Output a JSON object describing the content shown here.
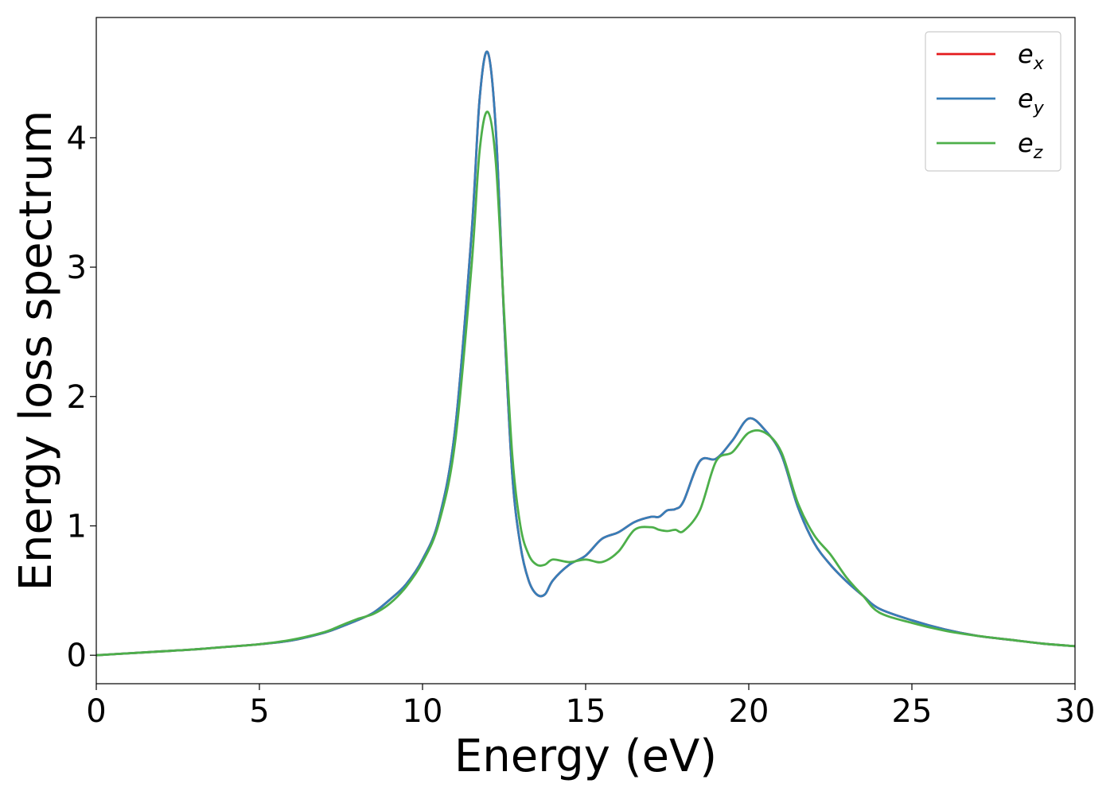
{
  "chart_data": {
    "type": "line",
    "xlabel": "Energy (eV)",
    "ylabel": "Energy loss spectrum",
    "xlim": [
      0,
      30
    ],
    "ylim": [
      -0.22,
      4.93
    ],
    "xticks": [
      "0",
      "5",
      "10",
      "15",
      "20",
      "25",
      "30"
    ],
    "yticks": [
      "0",
      "1",
      "2",
      "3",
      "4"
    ],
    "grid": false,
    "legend_position": "top-right",
    "series": [
      {
        "name": "e_x",
        "label_base": "e",
        "label_sub": "x",
        "color": "#e41a1c",
        "x": [
          0,
          1,
          2,
          3,
          4,
          5,
          6,
          7,
          7.5,
          8,
          8.5,
          9,
          9.5,
          10,
          10.5,
          11,
          11.5,
          11.75,
          12,
          12.25,
          12.5,
          12.75,
          13,
          13.25,
          13.5,
          13.75,
          14,
          14.5,
          15,
          15.5,
          16,
          16.5,
          17,
          17.25,
          17.5,
          17.75,
          18,
          18.5,
          19,
          19.5,
          20,
          20.5,
          21,
          21.5,
          22,
          22.5,
          23,
          23.5,
          24,
          25,
          26,
          27,
          28,
          29,
          30
        ],
        "y": [
          0,
          0.015,
          0.03,
          0.045,
          0.065,
          0.085,
          0.115,
          0.175,
          0.22,
          0.27,
          0.33,
          0.43,
          0.55,
          0.74,
          1.05,
          1.75,
          3.25,
          4.3,
          4.66,
          4.05,
          2.6,
          1.4,
          0.85,
          0.58,
          0.47,
          0.47,
          0.58,
          0.7,
          0.77,
          0.9,
          0.95,
          1.03,
          1.07,
          1.07,
          1.12,
          1.13,
          1.19,
          1.5,
          1.52,
          1.66,
          1.83,
          1.74,
          1.55,
          1.15,
          0.87,
          0.7,
          0.57,
          0.46,
          0.36,
          0.27,
          0.2,
          0.15,
          0.12,
          0.09,
          0.07
        ]
      },
      {
        "name": "e_y",
        "label_base": "e",
        "label_sub": "y",
        "color": "#377eb8",
        "x": [
          0,
          1,
          2,
          3,
          4,
          5,
          6,
          7,
          7.5,
          8,
          8.5,
          9,
          9.5,
          10,
          10.5,
          11,
          11.5,
          11.75,
          12,
          12.25,
          12.5,
          12.75,
          13,
          13.25,
          13.5,
          13.75,
          14,
          14.5,
          15,
          15.5,
          16,
          16.5,
          17,
          17.25,
          17.5,
          17.75,
          18,
          18.5,
          19,
          19.5,
          20,
          20.5,
          21,
          21.5,
          22,
          22.5,
          23,
          23.5,
          24,
          25,
          26,
          27,
          28,
          29,
          30
        ],
        "y": [
          0,
          0.015,
          0.03,
          0.045,
          0.065,
          0.085,
          0.115,
          0.175,
          0.22,
          0.27,
          0.33,
          0.43,
          0.55,
          0.74,
          1.05,
          1.75,
          3.25,
          4.3,
          4.66,
          4.05,
          2.6,
          1.4,
          0.85,
          0.58,
          0.47,
          0.47,
          0.58,
          0.7,
          0.77,
          0.9,
          0.95,
          1.03,
          1.07,
          1.07,
          1.12,
          1.13,
          1.19,
          1.5,
          1.52,
          1.66,
          1.83,
          1.74,
          1.55,
          1.15,
          0.87,
          0.7,
          0.57,
          0.46,
          0.36,
          0.27,
          0.2,
          0.15,
          0.12,
          0.09,
          0.07
        ]
      },
      {
        "name": "e_z",
        "label_base": "e",
        "label_sub": "z",
        "color": "#4daf4a",
        "x": [
          0,
          1,
          2,
          3,
          4,
          5,
          6,
          7,
          7.5,
          8,
          8.5,
          9,
          9.5,
          10,
          10.5,
          11,
          11.5,
          11.75,
          12,
          12.25,
          12.5,
          12.75,
          13,
          13.25,
          13.5,
          13.75,
          14,
          14.5,
          15,
          15.5,
          16,
          16.5,
          17,
          17.25,
          17.5,
          17.75,
          18,
          18.5,
          19,
          19.5,
          20,
          20.5,
          21,
          21.5,
          22,
          22.5,
          23,
          23.5,
          24,
          25,
          26,
          27,
          28,
          29,
          30
        ],
        "y": [
          0,
          0.015,
          0.03,
          0.045,
          0.065,
          0.085,
          0.12,
          0.18,
          0.23,
          0.28,
          0.32,
          0.4,
          0.53,
          0.72,
          1.02,
          1.65,
          3.0,
          3.9,
          4.2,
          3.8,
          2.65,
          1.55,
          1.0,
          0.78,
          0.7,
          0.7,
          0.74,
          0.72,
          0.74,
          0.72,
          0.8,
          0.97,
          0.99,
          0.97,
          0.96,
          0.97,
          0.96,
          1.12,
          1.5,
          1.57,
          1.72,
          1.72,
          1.57,
          1.18,
          0.93,
          0.78,
          0.6,
          0.46,
          0.33,
          0.25,
          0.19,
          0.15,
          0.12,
          0.09,
          0.07
        ]
      }
    ]
  }
}
